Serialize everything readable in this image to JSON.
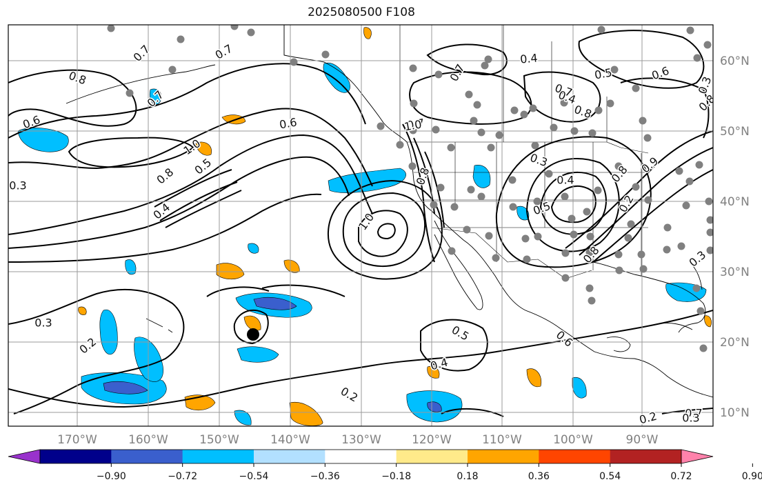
{
  "title": "2025080500 F108",
  "map": {
    "lon_labels": [
      "170°W",
      "160°W",
      "150°W",
      "140°W",
      "130°W",
      "120°W",
      "110°W",
      "100°W",
      "90°W"
    ],
    "lat_labels": [
      "60°N",
      "50°N",
      "40°N",
      "30°N",
      "20°N",
      "10°N"
    ],
    "contour_labels": [
      "0.7",
      "0.8",
      "0.6",
      "0.7",
      "0.7",
      "1.0",
      "0.8",
      "0.5",
      "0.4",
      "0.6",
      "0.7",
      "0.3",
      "0.2",
      "1.0",
      "0.4",
      "0.7",
      "0.5",
      "0.6",
      "0.7",
      "0.8",
      "0.3",
      "0.5",
      "0.4",
      "0.2",
      "0.3",
      "0.2",
      "0.7",
      "1.0",
      "0.9",
      "0.8",
      "0.8",
      "0.3",
      "0.2",
      "0.4",
      "0.5",
      "0.6",
      "0.8",
      "0.8",
      "0.4",
      "0.3",
      "0.3"
    ],
    "colors": {
      "grid": "#9a9a9a",
      "contour": "#000000",
      "station_dot": "#808080",
      "land_outline": "#000000"
    }
  },
  "colorbar": {
    "colors": [
      "#9932cc",
      "#00008b",
      "#3a5fcd",
      "#00bfff",
      "#b2e0ff",
      "#ffffff",
      "#ffea8a",
      "#ffa500",
      "#ff4500",
      "#b22222",
      "#ff82ab"
    ],
    "tick_labels": [
      "−0.90",
      "−0.72",
      "−0.54",
      "−0.36",
      "−0.18",
      "0.18",
      "0.36",
      "0.54",
      "0.72",
      "0.90"
    ]
  }
}
